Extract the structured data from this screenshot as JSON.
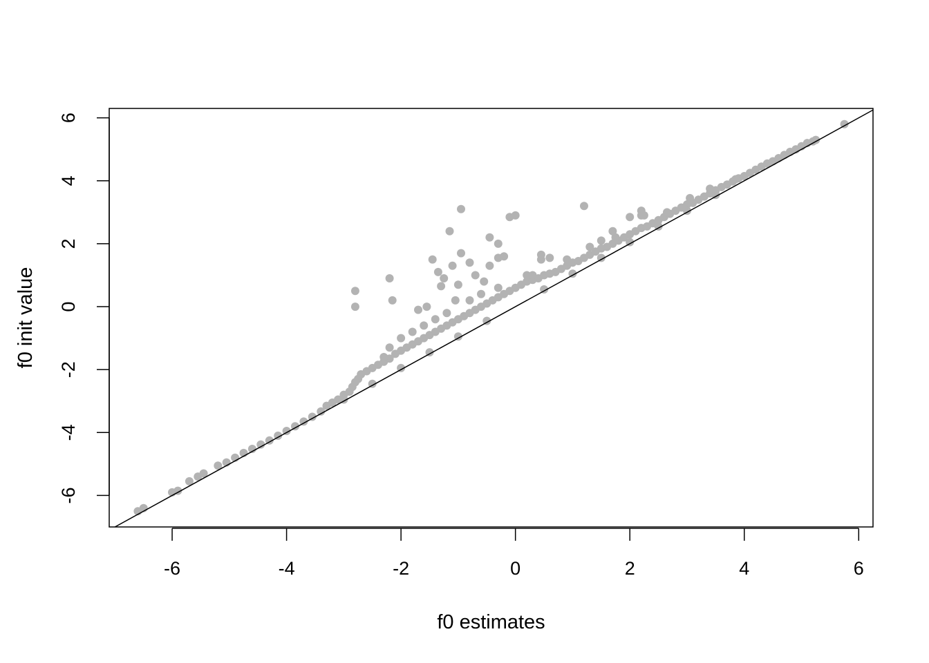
{
  "chart_data": {
    "type": "scatter",
    "title": "",
    "xlabel": "f0 estimates",
    "ylabel": "f0 init value",
    "xlim": [
      -7.1,
      6.25
    ],
    "ylim": [
      -7.0,
      6.3
    ],
    "xticks": [
      -6,
      -4,
      -2,
      0,
      2,
      4,
      6
    ],
    "yticks": [
      -6,
      -4,
      -2,
      0,
      2,
      4,
      6
    ],
    "xtick_labels": [
      "-6",
      "-4",
      "-2",
      "0",
      "2",
      "4",
      "6"
    ],
    "ytick_labels": [
      "-6",
      "-4",
      "-2",
      "0",
      "2",
      "4",
      "6"
    ],
    "grid": false,
    "legend": "none",
    "colors": {
      "points": "#b3b3b3",
      "reference_line": "#000000"
    },
    "reference_line": {
      "kind": "identity",
      "intercept": 0,
      "slope": 1
    },
    "series": [
      {
        "points": [
          [
            -6.6,
            -6.5
          ],
          [
            -6.5,
            -6.4
          ],
          [
            -6.0,
            -5.9
          ],
          [
            -5.9,
            -5.85
          ],
          [
            -5.7,
            -5.55
          ],
          [
            -5.55,
            -5.4
          ],
          [
            -5.45,
            -5.3
          ],
          [
            -5.2,
            -5.05
          ],
          [
            -5.05,
            -4.95
          ],
          [
            -4.9,
            -4.8
          ],
          [
            -4.75,
            -4.65
          ],
          [
            -4.6,
            -4.52
          ],
          [
            -4.45,
            -4.38
          ],
          [
            -4.3,
            -4.25
          ],
          [
            -4.15,
            -4.1
          ],
          [
            -4.0,
            -3.95
          ],
          [
            -3.85,
            -3.8
          ],
          [
            -3.7,
            -3.65
          ],
          [
            -3.55,
            -3.5
          ],
          [
            -3.4,
            -3.33
          ],
          [
            -3.3,
            -3.15
          ],
          [
            -3.2,
            -3.05
          ],
          [
            -3.1,
            -2.95
          ],
          [
            -3.0,
            -2.8
          ],
          [
            -2.9,
            -2.7
          ],
          [
            -2.85,
            -2.55
          ],
          [
            -2.8,
            -2.4
          ],
          [
            -2.75,
            -2.3
          ],
          [
            -2.7,
            -2.15
          ],
          [
            -2.6,
            -2.05
          ],
          [
            -2.5,
            -1.95
          ],
          [
            -2.4,
            -1.85
          ],
          [
            -2.3,
            -1.75
          ],
          [
            -2.2,
            -1.65
          ],
          [
            -2.1,
            -1.5
          ],
          [
            -2.0,
            -1.4
          ],
          [
            -1.9,
            -1.3
          ],
          [
            -1.8,
            -1.2
          ],
          [
            -1.7,
            -1.1
          ],
          [
            -1.6,
            -1.0
          ],
          [
            -1.5,
            -0.9
          ],
          [
            -1.4,
            -0.8
          ],
          [
            -1.3,
            -0.7
          ],
          [
            -1.2,
            -0.6
          ],
          [
            -1.1,
            -0.5
          ],
          [
            -1.0,
            -0.4
          ],
          [
            -0.9,
            -0.3
          ],
          [
            -0.8,
            -0.2
          ],
          [
            -0.7,
            -0.1
          ],
          [
            -0.6,
            0.0
          ],
          [
            -0.5,
            0.1
          ],
          [
            -0.4,
            0.2
          ],
          [
            -0.3,
            0.3
          ],
          [
            -0.2,
            0.4
          ],
          [
            -0.1,
            0.5
          ],
          [
            0.0,
            0.6
          ],
          [
            0.1,
            0.7
          ],
          [
            0.2,
            0.8
          ],
          [
            0.3,
            0.85
          ],
          [
            0.4,
            0.9
          ],
          [
            0.5,
            1.0
          ],
          [
            0.6,
            1.05
          ],
          [
            0.7,
            1.1
          ],
          [
            0.8,
            1.2
          ],
          [
            0.9,
            1.3
          ],
          [
            1.0,
            1.4
          ],
          [
            1.1,
            1.45
          ],
          [
            1.2,
            1.55
          ],
          [
            1.3,
            1.65
          ],
          [
            1.4,
            1.75
          ],
          [
            1.5,
            1.85
          ],
          [
            1.6,
            1.9
          ],
          [
            1.7,
            2.0
          ],
          [
            1.8,
            2.1
          ],
          [
            1.9,
            2.2
          ],
          [
            2.0,
            2.3
          ],
          [
            2.1,
            2.4
          ],
          [
            2.2,
            2.5
          ],
          [
            2.3,
            2.55
          ],
          [
            2.4,
            2.65
          ],
          [
            2.5,
            2.75
          ],
          [
            2.6,
            2.85
          ],
          [
            2.7,
            2.95
          ],
          [
            2.8,
            3.05
          ],
          [
            2.9,
            3.15
          ],
          [
            3.0,
            3.25
          ],
          [
            3.1,
            3.3
          ],
          [
            3.2,
            3.4
          ],
          [
            3.3,
            3.5
          ],
          [
            3.4,
            3.6
          ],
          [
            3.5,
            3.7
          ],
          [
            3.6,
            3.8
          ],
          [
            3.7,
            3.88
          ],
          [
            3.8,
            3.98
          ],
          [
            3.9,
            4.08
          ],
          [
            4.0,
            4.15
          ],
          [
            4.1,
            4.25
          ],
          [
            4.2,
            4.35
          ],
          [
            4.3,
            4.45
          ],
          [
            4.4,
            4.55
          ],
          [
            4.5,
            4.62
          ],
          [
            4.6,
            4.72
          ],
          [
            4.7,
            4.82
          ],
          [
            4.8,
            4.92
          ],
          [
            4.9,
            5.0
          ],
          [
            5.0,
            5.1
          ],
          [
            5.1,
            5.2
          ],
          [
            5.2,
            5.25
          ],
          [
            5.25,
            5.3
          ],
          [
            5.75,
            5.8
          ],
          [
            -3.0,
            -2.95
          ],
          [
            -2.5,
            -2.45
          ],
          [
            -2.0,
            -1.95
          ],
          [
            -1.5,
            -1.45
          ],
          [
            -1.0,
            -0.95
          ],
          [
            -0.5,
            -0.45
          ],
          [
            0.5,
            0.55
          ],
          [
            1.0,
            1.05
          ],
          [
            1.5,
            1.55
          ],
          [
            2.0,
            2.05
          ],
          [
            2.5,
            2.55
          ],
          [
            3.0,
            3.05
          ],
          [
            3.5,
            3.55
          ],
          [
            -2.2,
            -1.3
          ],
          [
            -2.3,
            -1.6
          ],
          [
            -2.0,
            -1.0
          ],
          [
            -1.8,
            -0.8
          ],
          [
            -1.6,
            -0.6
          ],
          [
            -1.4,
            -0.4
          ],
          [
            -1.2,
            -0.2
          ],
          [
            -0.8,
            0.2
          ],
          [
            -0.6,
            0.4
          ],
          [
            -0.3,
            0.6
          ],
          [
            0.2,
            1.0
          ],
          [
            0.45,
            1.5
          ],
          [
            0.9,
            1.5
          ],
          [
            1.3,
            1.9
          ],
          [
            1.75,
            2.2
          ],
          [
            2.2,
            2.9
          ],
          [
            2.65,
            3.0
          ],
          [
            3.05,
            3.45
          ],
          [
            3.4,
            3.75
          ],
          [
            3.85,
            4.05
          ],
          [
            -2.8,
            0.5
          ],
          [
            -2.8,
            0.0
          ],
          [
            -2.2,
            0.9
          ],
          [
            -2.15,
            0.2
          ],
          [
            -1.15,
            2.4
          ],
          [
            -0.95,
            3.1
          ],
          [
            -0.45,
            2.2
          ],
          [
            -0.3,
            2.0
          ],
          [
            -0.1,
            2.85
          ],
          [
            0.0,
            2.9
          ],
          [
            1.2,
            3.2
          ],
          [
            -1.45,
            1.5
          ],
          [
            -1.35,
            1.1
          ],
          [
            -1.25,
            0.9
          ],
          [
            -1.1,
            1.3
          ],
          [
            -0.95,
            1.7
          ],
          [
            -0.8,
            1.4
          ],
          [
            -0.7,
            1.0
          ],
          [
            -0.3,
            1.55
          ],
          [
            -0.2,
            1.6
          ],
          [
            -1.55,
            0.0
          ],
          [
            -1.7,
            -0.1
          ],
          [
            -1.3,
            0.65
          ],
          [
            -1.0,
            0.7
          ],
          [
            -0.55,
            0.8
          ],
          [
            -0.45,
            1.3
          ],
          [
            0.3,
            1.0
          ],
          [
            0.45,
            1.65
          ],
          [
            0.6,
            1.55
          ],
          [
            -1.05,
            0.2
          ],
          [
            2.0,
            2.85
          ],
          [
            2.2,
            3.05
          ],
          [
            2.25,
            2.9
          ],
          [
            1.7,
            2.4
          ],
          [
            1.5,
            2.1
          ]
        ]
      }
    ]
  }
}
